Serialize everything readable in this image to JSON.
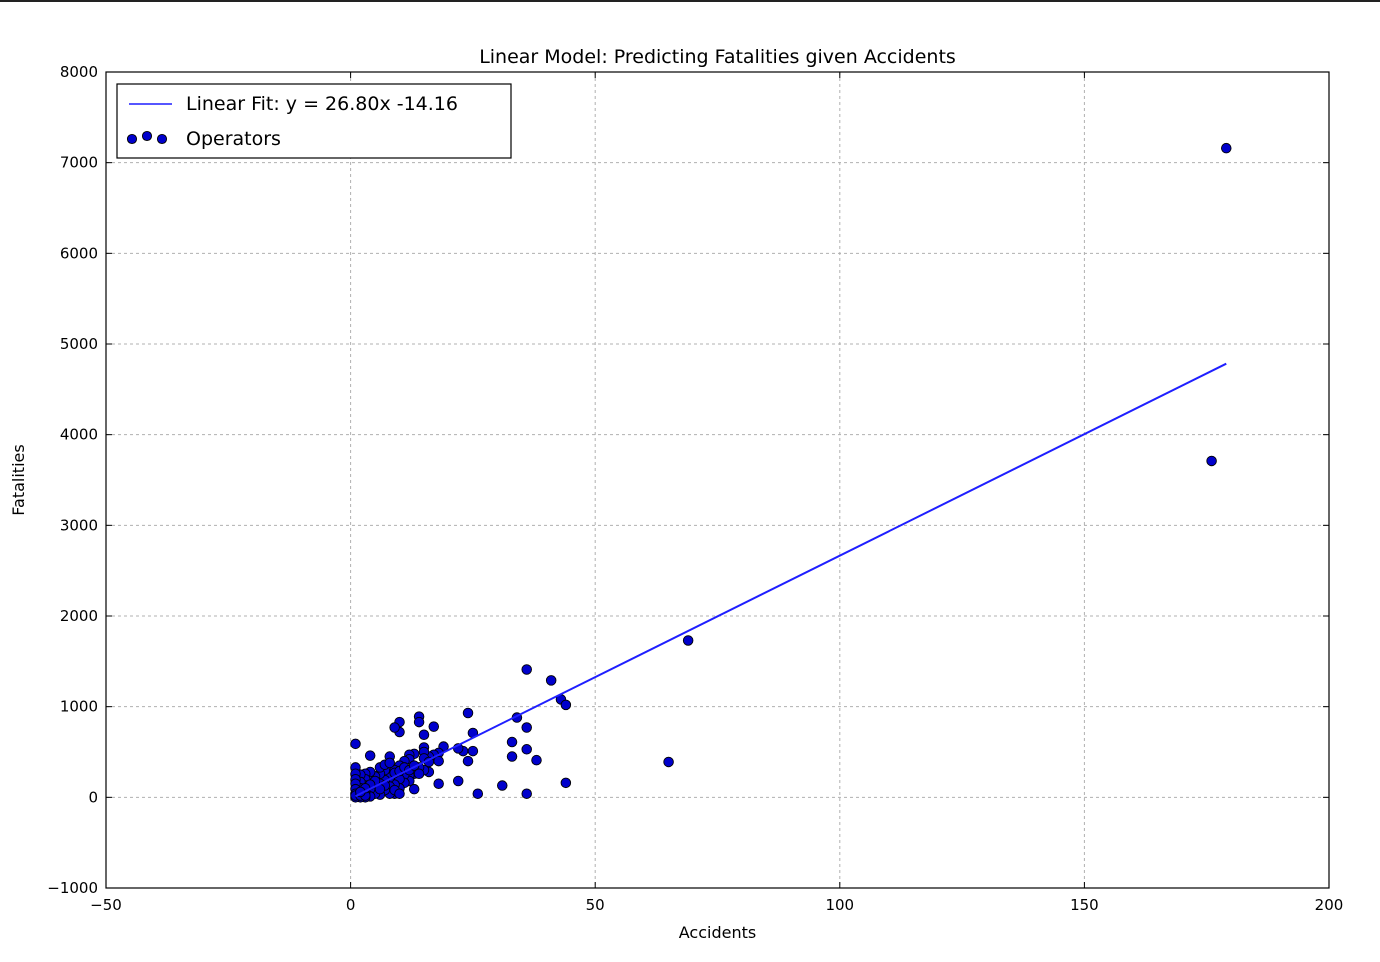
{
  "chart_data": {
    "type": "scatter",
    "title": "Linear Model: Predicting Fatalities given Accidents",
    "xlabel": "Accidents",
    "ylabel": "Fatalities",
    "xlim": [
      -50,
      200
    ],
    "ylim": [
      -1000,
      8000
    ],
    "xticks": [
      -50,
      0,
      50,
      100,
      150,
      200
    ],
    "yticks": [
      -1000,
      0,
      1000,
      2000,
      3000,
      4000,
      5000,
      6000,
      7000,
      8000
    ],
    "x_tick_labels": [
      "−50",
      "0",
      "50",
      "100",
      "150",
      "200"
    ],
    "y_tick_labels": [
      "−1000",
      "0",
      "1000",
      "2000",
      "3000",
      "4000",
      "5000",
      "6000",
      "7000",
      "8000"
    ],
    "grid": true,
    "legend_position": "top-left",
    "legend": [
      "Linear Fit: y = 26.80x -14.16",
      "Operators"
    ],
    "fit": {
      "name": "Linear Fit: y = 26.80x -14.16",
      "slope": 26.8,
      "intercept": -14.16,
      "x_range": [
        1,
        179
      ],
      "color": "#1f1fff"
    },
    "series": [
      {
        "name": "Operators",
        "color": "#0000cc",
        "points": [
          [
            179,
            7160
          ],
          [
            176,
            3710
          ],
          [
            69,
            1730
          ],
          [
            65,
            390
          ],
          [
            36,
            1410
          ],
          [
            41,
            1290
          ],
          [
            43,
            1080
          ],
          [
            44,
            1020
          ],
          [
            44,
            160
          ],
          [
            34,
            880
          ],
          [
            36,
            770
          ],
          [
            33,
            610
          ],
          [
            36,
            530
          ],
          [
            33,
            450
          ],
          [
            38,
            410
          ],
          [
            31,
            130
          ],
          [
            36,
            40
          ],
          [
            26,
            40
          ],
          [
            24,
            930
          ],
          [
            25,
            710
          ],
          [
            25,
            510
          ],
          [
            23,
            510
          ],
          [
            22,
            540
          ],
          [
            22,
            180
          ],
          [
            24,
            400
          ],
          [
            14,
            890
          ],
          [
            14,
            830
          ],
          [
            17,
            780
          ],
          [
            15,
            690
          ],
          [
            10,
            830
          ],
          [
            10,
            720
          ],
          [
            9,
            770
          ],
          [
            19,
            560
          ],
          [
            18,
            490
          ],
          [
            17,
            470
          ],
          [
            16,
            450
          ],
          [
            15,
            550
          ],
          [
            15,
            500
          ],
          [
            15,
            430
          ],
          [
            13,
            480
          ],
          [
            12,
            470
          ],
          [
            12,
            420
          ],
          [
            11,
            400
          ],
          [
            10,
            350
          ],
          [
            9,
            300
          ],
          [
            8,
            450
          ],
          [
            16,
            390
          ],
          [
            18,
            400
          ],
          [
            16,
            280
          ],
          [
            15,
            300
          ],
          [
            14,
            330
          ],
          [
            13,
            260
          ],
          [
            12,
            240
          ],
          [
            12,
            180
          ],
          [
            13,
            90
          ],
          [
            18,
            150
          ],
          [
            11,
            250
          ],
          [
            11,
            160
          ],
          [
            10,
            200
          ],
          [
            10,
            100
          ],
          [
            9,
            140
          ],
          [
            9,
            40
          ],
          [
            8,
            220
          ],
          [
            8,
            120
          ],
          [
            8,
            40
          ],
          [
            7,
            300
          ],
          [
            7,
            190
          ],
          [
            7,
            80
          ],
          [
            6,
            260
          ],
          [
            6,
            150
          ],
          [
            6,
            30
          ],
          [
            5,
            230
          ],
          [
            5,
            120
          ],
          [
            5,
            40
          ],
          [
            4,
            460
          ],
          [
            4,
            280
          ],
          [
            4,
            180
          ],
          [
            4,
            90
          ],
          [
            4,
            10
          ],
          [
            3,
            260
          ],
          [
            3,
            200
          ],
          [
            3,
            130
          ],
          [
            3,
            60
          ],
          [
            3,
            0
          ],
          [
            2,
            250
          ],
          [
            2,
            170
          ],
          [
            2,
            100
          ],
          [
            2,
            40
          ],
          [
            2,
            0
          ],
          [
            1,
            590
          ],
          [
            1,
            330
          ],
          [
            1,
            260
          ],
          [
            1,
            200
          ],
          [
            1,
            150
          ],
          [
            1,
            90
          ],
          [
            1,
            40
          ],
          [
            1,
            0
          ],
          [
            1,
            20
          ],
          [
            2,
            20
          ],
          [
            3,
            20
          ],
          [
            6,
            330
          ],
          [
            7,
            360
          ],
          [
            8,
            380
          ],
          [
            9,
            270
          ],
          [
            10,
            290
          ],
          [
            11,
            330
          ],
          [
            12,
            300
          ],
          [
            13,
            350
          ],
          [
            14,
            260
          ],
          [
            9,
            80
          ],
          [
            10,
            40
          ],
          [
            7,
            130
          ],
          [
            6,
            90
          ],
          [
            5,
            180
          ],
          [
            4,
            140
          ],
          [
            3,
            100
          ],
          [
            2,
            60
          ]
        ]
      }
    ]
  }
}
